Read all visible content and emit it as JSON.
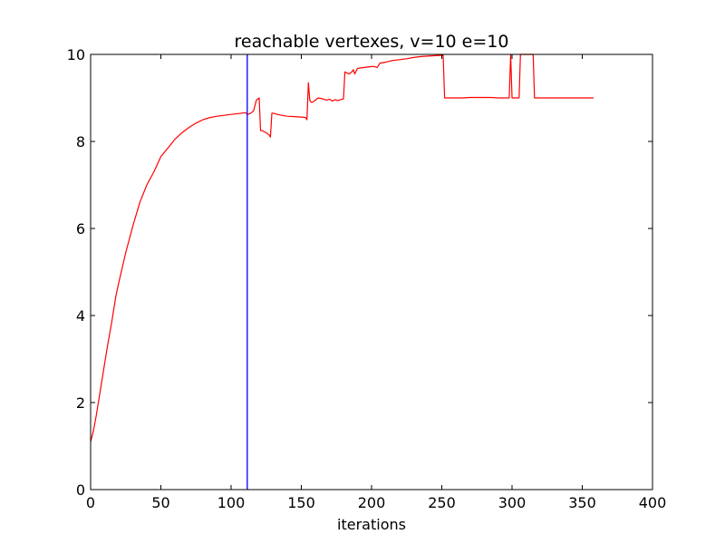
{
  "chart_data": {
    "type": "line",
    "title": "reachable vertexes, v=10 e=10",
    "xlabel": "iterations",
    "ylabel": "",
    "xlim": [
      0,
      400
    ],
    "ylim": [
      0,
      10
    ],
    "xticks": [
      0,
      50,
      100,
      150,
      200,
      250,
      300,
      350,
      400
    ],
    "yticks": [
      0,
      2,
      4,
      6,
      8,
      10
    ],
    "xtick_labels": [
      "0",
      "50",
      "100",
      "150",
      "200",
      "250",
      "300",
      "350",
      "400"
    ],
    "ytick_labels": [
      "0",
      "2",
      "4",
      "6",
      "8",
      "10"
    ],
    "grid": false,
    "legend": "none",
    "series": [
      {
        "color": "#ff0000",
        "x": [
          0,
          2,
          4,
          6,
          8,
          10,
          12,
          15,
          18,
          20,
          25,
          30,
          35,
          40,
          45,
          50,
          55,
          60,
          65,
          70,
          75,
          80,
          85,
          90,
          95,
          100,
          105,
          110,
          112,
          114,
          116,
          118,
          120,
          121,
          122,
          125,
          127,
          128,
          129,
          130,
          133,
          136,
          140,
          145,
          150,
          153,
          154,
          155,
          156,
          157,
          158,
          160,
          162,
          165,
          168,
          170,
          172,
          174,
          176,
          178,
          180,
          181,
          182,
          184,
          186,
          187,
          188,
          190,
          195,
          200,
          202,
          204,
          206,
          210,
          215,
          220,
          225,
          230,
          235,
          240,
          245,
          250,
          251,
          252,
          253,
          255,
          260,
          265,
          270,
          275,
          280,
          285,
          290,
          295,
          298,
          299,
          300,
          301,
          303,
          305,
          306,
          307,
          310,
          315,
          316,
          317,
          320,
          330,
          340,
          350,
          358
        ],
        "y": [
          1.1,
          1.35,
          1.7,
          2.1,
          2.5,
          2.9,
          3.3,
          3.85,
          4.45,
          4.75,
          5.45,
          6.05,
          6.6,
          7.0,
          7.3,
          7.65,
          7.85,
          8.05,
          8.2,
          8.32,
          8.42,
          8.5,
          8.55,
          8.58,
          8.6,
          8.62,
          8.64,
          8.66,
          8.62,
          8.65,
          8.7,
          8.95,
          9.0,
          8.25,
          8.25,
          8.2,
          8.15,
          8.1,
          8.65,
          8.65,
          8.62,
          8.6,
          8.58,
          8.57,
          8.56,
          8.55,
          8.5,
          9.35,
          8.95,
          8.9,
          8.9,
          8.95,
          9.0,
          8.98,
          8.95,
          8.97,
          8.93,
          8.96,
          8.94,
          8.96,
          8.98,
          9.6,
          9.58,
          9.55,
          9.6,
          9.65,
          9.55,
          9.68,
          9.7,
          9.72,
          9.72,
          9.7,
          9.8,
          9.82,
          9.86,
          9.88,
          9.9,
          9.93,
          9.95,
          9.96,
          9.97,
          9.98,
          9.98,
          9.0,
          9.0,
          9.0,
          9.0,
          9.0,
          9.01,
          9.01,
          9.01,
          9.01,
          9.0,
          9.0,
          9.0,
          10.0,
          9.0,
          9.0,
          9.0,
          9.0,
          10.0,
          10.0,
          10.0,
          10.0,
          9.0,
          9.0,
          9.0,
          9.0,
          9.0,
          9.0,
          9.0
        ]
      }
    ],
    "vlines": [
      {
        "x": 111.5,
        "color": "#0000ff"
      }
    ]
  }
}
